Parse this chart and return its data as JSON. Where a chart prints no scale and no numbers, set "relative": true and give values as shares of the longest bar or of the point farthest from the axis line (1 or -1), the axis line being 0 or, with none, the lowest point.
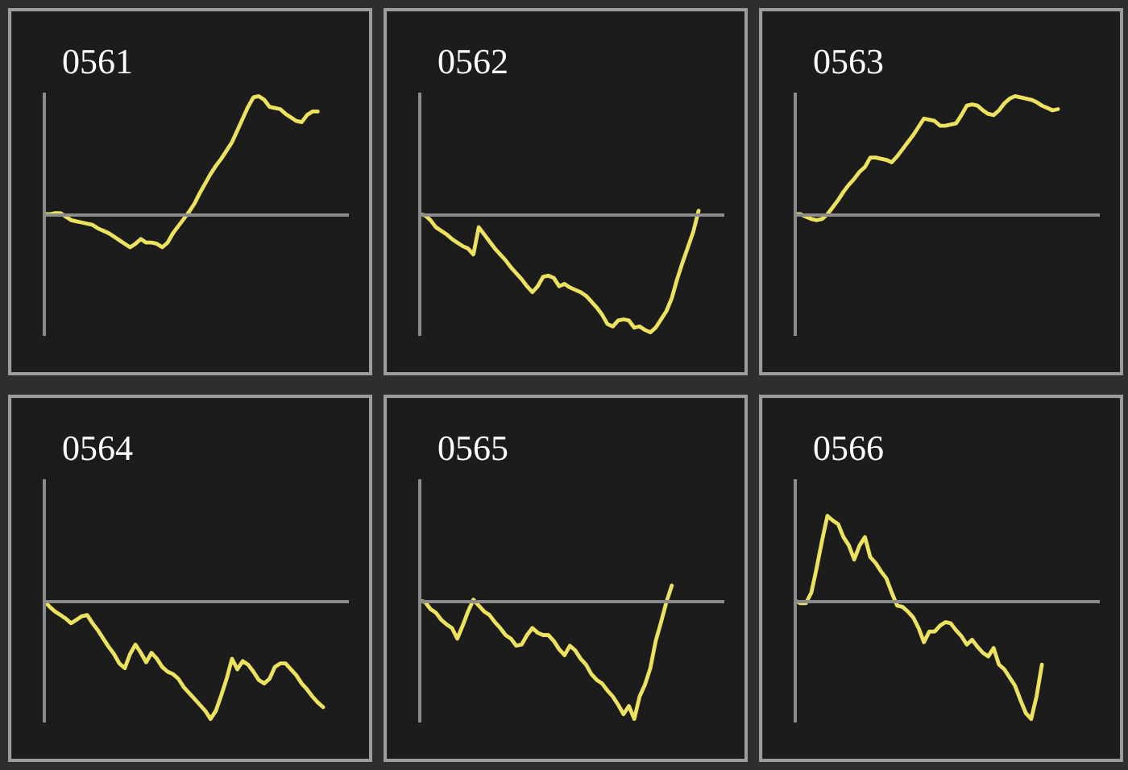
{
  "chart_data": [
    {
      "type": "line",
      "title": "0561",
      "relative": true,
      "color": "#ede25e",
      "categories": [
        null,
        null,
        null,
        null,
        null,
        null,
        null,
        null,
        null,
        null,
        null,
        null,
        null,
        null,
        null,
        null,
        null,
        null,
        null,
        null,
        null,
        null,
        null,
        null,
        null,
        null,
        null,
        null,
        null,
        null,
        null,
        null,
        null,
        null,
        null,
        null,
        null,
        null,
        null,
        null,
        null,
        null,
        null,
        null,
        null,
        null,
        null,
        null,
        null,
        null,
        null,
        null,
        null,
        null,
        null,
        null,
        null
      ],
      "values": [
        0,
        0,
        0.01,
        0.01,
        -0.02,
        -0.05,
        -0.06,
        -0.07,
        -0.08,
        -0.09,
        -0.12,
        -0.14,
        -0.16,
        -0.19,
        -0.22,
        -0.25,
        -0.28,
        -0.25,
        -0.21,
        -0.24,
        -0.24,
        -0.25,
        -0.28,
        -0.24,
        -0.16,
        -0.1,
        -0.04,
        0.02,
        0.09,
        0.18,
        0.26,
        0.34,
        0.41,
        0.47,
        0.54,
        0.61,
        0.71,
        0.81,
        0.91,
        0.99,
        1,
        0.97,
        0.91,
        0.9,
        0.89,
        0.85,
        0.82,
        0.79,
        0.78,
        0.84,
        0.87,
        0.87,
        null,
        null,
        null,
        null,
        null
      ]
    },
    {
      "type": "line",
      "title": "0562",
      "relative": true,
      "color": "#ede25e",
      "categories": [
        null,
        null,
        null,
        null,
        null,
        null,
        null,
        null,
        null,
        null,
        null,
        null,
        null,
        null,
        null,
        null,
        null,
        null,
        null,
        null,
        null,
        null,
        null,
        null,
        null,
        null,
        null,
        null,
        null,
        null,
        null,
        null,
        null,
        null,
        null,
        null,
        null,
        null,
        null,
        null,
        null,
        null,
        null,
        null,
        null,
        null,
        null,
        null,
        null,
        null,
        null,
        null,
        null,
        null,
        null,
        null,
        null
      ],
      "values": [
        0,
        -0.01,
        -0.05,
        -0.11,
        -0.14,
        -0.17,
        -0.21,
        -0.24,
        -0.27,
        -0.29,
        -0.34,
        -0.11,
        -0.17,
        -0.23,
        -0.29,
        -0.34,
        -0.39,
        -0.45,
        -0.5,
        -0.55,
        -0.61,
        -0.66,
        -0.61,
        -0.53,
        -0.52,
        -0.54,
        -0.61,
        -0.59,
        -0.62,
        -0.64,
        -0.66,
        -0.69,
        -0.74,
        -0.79,
        -0.85,
        -0.93,
        -0.95,
        -0.9,
        -0.89,
        -0.9,
        -0.96,
        -0.95,
        -0.98,
        -1,
        -0.96,
        -0.89,
        -0.82,
        -0.71,
        -0.55,
        -0.41,
        -0.28,
        -0.15,
        0.03,
        null,
        null,
        null,
        null
      ]
    },
    {
      "type": "line",
      "title": "0563",
      "relative": true,
      "color": "#ede25e",
      "categories": [
        null,
        null,
        null,
        null,
        null,
        null,
        null,
        null,
        null,
        null,
        null,
        null,
        null,
        null,
        null,
        null,
        null,
        null,
        null,
        null,
        null,
        null,
        null,
        null,
        null,
        null,
        null,
        null,
        null,
        null,
        null,
        null,
        null,
        null,
        null,
        null,
        null,
        null,
        null,
        null,
        null,
        null,
        null,
        null,
        null,
        null,
        null,
        null,
        null,
        null,
        null,
        null,
        null,
        null,
        null,
        null,
        null
      ],
      "values": [
        0,
        0,
        -0.02,
        -0.04,
        -0.05,
        -0.04,
        0,
        0.06,
        0.12,
        0.19,
        0.25,
        0.3,
        0.36,
        0.4,
        0.48,
        0.48,
        0.47,
        0.46,
        0.44,
        0.49,
        0.55,
        0.61,
        0.67,
        0.74,
        0.81,
        0.8,
        0.79,
        0.75,
        0.75,
        0.76,
        0.77,
        0.84,
        0.92,
        0.93,
        0.92,
        0.88,
        0.85,
        0.84,
        0.88,
        0.94,
        0.98,
        1,
        0.99,
        0.98,
        0.97,
        0.95,
        0.92,
        0.9,
        0.88,
        0.89,
        null,
        null,
        null,
        null,
        null,
        null,
        null
      ]
    },
    {
      "type": "line",
      "title": "0564",
      "relative": true,
      "color": "#ede25e",
      "categories": [
        null,
        null,
        null,
        null,
        null,
        null,
        null,
        null,
        null,
        null,
        null,
        null,
        null,
        null,
        null,
        null,
        null,
        null,
        null,
        null,
        null,
        null,
        null,
        null,
        null,
        null,
        null,
        null,
        null,
        null,
        null,
        null,
        null,
        null,
        null,
        null,
        null,
        null,
        null,
        null,
        null,
        null,
        null,
        null,
        null,
        null,
        null,
        null,
        null,
        null,
        null,
        null,
        null,
        null,
        null,
        null,
        null
      ],
      "values": [
        0,
        -0.05,
        -0.09,
        -0.12,
        -0.15,
        -0.19,
        -0.16,
        -0.13,
        -0.12,
        -0.19,
        -0.25,
        -0.32,
        -0.39,
        -0.45,
        -0.53,
        -0.57,
        -0.45,
        -0.37,
        -0.44,
        -0.52,
        -0.44,
        -0.49,
        -0.56,
        -0.6,
        -0.62,
        -0.66,
        -0.73,
        -0.78,
        -0.83,
        -0.88,
        -0.93,
        -1,
        -0.93,
        -0.8,
        -0.66,
        -0.49,
        -0.58,
        -0.51,
        -0.54,
        -0.6,
        -0.67,
        -0.7,
        -0.66,
        -0.56,
        -0.53,
        -0.53,
        -0.58,
        -0.63,
        -0.7,
        -0.75,
        -0.81,
        -0.86,
        -0.9,
        null,
        null,
        null,
        null
      ]
    },
    {
      "type": "line",
      "title": "0565",
      "relative": true,
      "color": "#ede25e",
      "categories": [
        null,
        null,
        null,
        null,
        null,
        null,
        null,
        null,
        null,
        null,
        null,
        null,
        null,
        null,
        null,
        null,
        null,
        null,
        null,
        null,
        null,
        null,
        null,
        null,
        null,
        null,
        null,
        null,
        null,
        null,
        null,
        null,
        null,
        null,
        null,
        null,
        null,
        null,
        null,
        null,
        null,
        null,
        null,
        null,
        null,
        null,
        null,
        null,
        null,
        null,
        null,
        null,
        null,
        null,
        null,
        null,
        null
      ],
      "values": [
        0,
        -0.01,
        -0.07,
        -0.1,
        -0.16,
        -0.2,
        -0.23,
        -0.32,
        -0.21,
        -0.09,
        0.01,
        -0.04,
        -0.09,
        -0.12,
        -0.18,
        -0.23,
        -0.29,
        -0.32,
        -0.38,
        -0.37,
        -0.29,
        -0.23,
        -0.27,
        -0.29,
        -0.29,
        -0.34,
        -0.41,
        -0.46,
        -0.38,
        -0.42,
        -0.49,
        -0.54,
        -0.62,
        -0.67,
        -0.7,
        -0.76,
        -0.81,
        -0.88,
        -0.96,
        -0.89,
        -1,
        -0.81,
        -0.71,
        -0.57,
        -0.34,
        -0.18,
        -0.01,
        0.13,
        null,
        null,
        null,
        null,
        null,
        null,
        null,
        null,
        null
      ]
    },
    {
      "type": "line",
      "title": "0566",
      "relative": true,
      "color": "#ede25e",
      "categories": [
        null,
        null,
        null,
        null,
        null,
        null,
        null,
        null,
        null,
        null,
        null,
        null,
        null,
        null,
        null,
        null,
        null,
        null,
        null,
        null,
        null,
        null,
        null,
        null,
        null,
        null,
        null,
        null,
        null,
        null,
        null,
        null,
        null,
        null,
        null,
        null,
        null,
        null,
        null,
        null,
        null,
        null,
        null,
        null,
        null,
        null,
        null,
        null,
        null,
        null,
        null,
        null,
        null,
        null,
        null,
        null,
        null
      ],
      "values": [
        0,
        -0.02,
        -0.02,
        0.07,
        0.28,
        0.51,
        0.72,
        0.68,
        0.65,
        0.54,
        0.47,
        0.35,
        0.47,
        0.54,
        0.37,
        0.32,
        0.25,
        0.19,
        0.07,
        -0.04,
        -0.05,
        -0.09,
        -0.14,
        -0.23,
        -0.35,
        -0.26,
        -0.26,
        -0.21,
        -0.18,
        -0.19,
        -0.25,
        -0.3,
        -0.37,
        -0.33,
        -0.39,
        -0.44,
        -0.47,
        -0.4,
        -0.54,
        -0.58,
        -0.65,
        -0.72,
        -0.84,
        -0.95,
        -1,
        -0.81,
        -0.54,
        null,
        null,
        null,
        null,
        null,
        null,
        null,
        null,
        null,
        null
      ]
    }
  ]
}
